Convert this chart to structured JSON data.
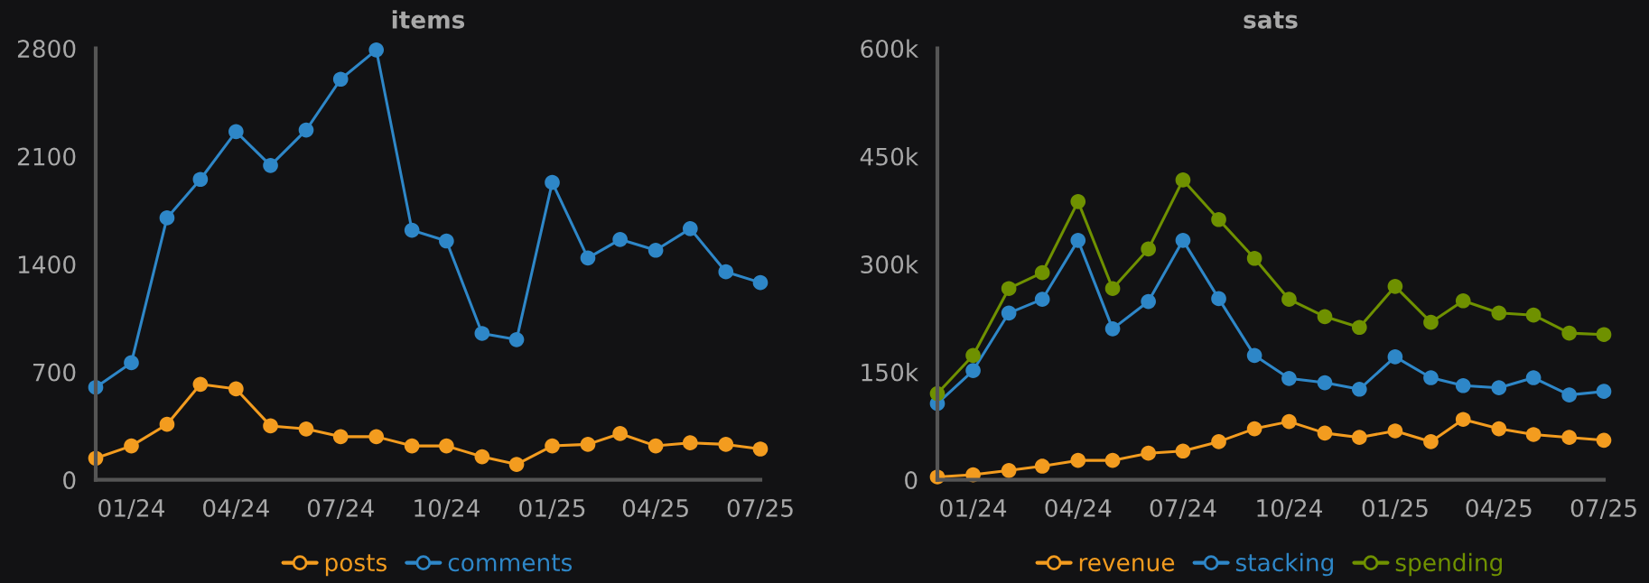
{
  "chart_data": [
    {
      "type": "line",
      "title": "items",
      "x": [
        "2023-12",
        "2024-01",
        "2024-02",
        "2024-03",
        "2024-04",
        "2024-05",
        "2024-06",
        "2024-07",
        "2024-08",
        "2024-09",
        "2024-10",
        "2024-11",
        "2024-12",
        "2025-01",
        "2025-02",
        "2025-03",
        "2025-04",
        "2025-05",
        "2025-06",
        "2025-07"
      ],
      "series": [
        {
          "name": "posts",
          "color": "#f39c1f",
          "values": [
            140,
            220,
            360,
            620,
            590,
            350,
            330,
            280,
            280,
            220,
            220,
            150,
            100,
            220,
            230,
            300,
            220,
            240,
            230,
            200
          ]
        },
        {
          "name": "comments",
          "color": "#2e87c8",
          "values": [
            600,
            760,
            1700,
            1950,
            2260,
            2040,
            2270,
            2600,
            2790,
            1620,
            1550,
            950,
            910,
            1930,
            1440,
            1560,
            1490,
            1630,
            1350,
            1280
          ]
        }
      ],
      "xlim": [
        "2023-12",
        "2025-07"
      ],
      "xticks": [
        {
          "value": "2024-01",
          "label": "01/24"
        },
        {
          "value": "2024-04",
          "label": "04/24"
        },
        {
          "value": "2024-07",
          "label": "07/24"
        },
        {
          "value": "2024-10",
          "label": "10/24"
        },
        {
          "value": "2025-01",
          "label": "01/25"
        },
        {
          "value": "2025-04",
          "label": "04/25"
        },
        {
          "value": "2025-07",
          "label": "07/25"
        }
      ],
      "ylim": [
        0,
        2800
      ],
      "yticks": [
        0,
        700,
        1400,
        2100,
        2800
      ],
      "grid": false,
      "legend": "bottom",
      "marker": "circle",
      "line_style": "solid"
    },
    {
      "type": "line",
      "title": "sats",
      "x": [
        "2023-12",
        "2024-01",
        "2024-02",
        "2024-03",
        "2024-04",
        "2024-05",
        "2024-06",
        "2024-07",
        "2024-08",
        "2024-09",
        "2024-10",
        "2024-11",
        "2024-12",
        "2025-01",
        "2025-02",
        "2025-03",
        "2025-04",
        "2025-05",
        "2025-06",
        "2025-07"
      ],
      "series": [
        {
          "name": "revenue",
          "color": "#f39c1f",
          "values": [
            4000,
            7000,
            13000,
            19000,
            27000,
            27000,
            37000,
            40000,
            53000,
            71000,
            81000,
            65000,
            59000,
            68000,
            53000,
            84000,
            71000,
            63000,
            59000,
            55000
          ]
        },
        {
          "name": "stacking",
          "color": "#2e87c8",
          "values": [
            106000,
            152000,
            232000,
            251000,
            333000,
            210000,
            248000,
            333000,
            252000,
            173000,
            141000,
            135000,
            126000,
            171000,
            142000,
            131000,
            128000,
            142000,
            118000,
            123000
          ]
        },
        {
          "name": "spending",
          "color": "#6f9100",
          "values": [
            120000,
            173000,
            266000,
            288000,
            387000,
            266000,
            321000,
            417000,
            362000,
            308000,
            251000,
            227000,
            212000,
            269000,
            219000,
            249000,
            232000,
            229000,
            204000,
            202000
          ]
        }
      ],
      "xlim": [
        "2023-12",
        "2025-07"
      ],
      "xticks": [
        {
          "value": "2024-01",
          "label": "01/24"
        },
        {
          "value": "2024-04",
          "label": "04/24"
        },
        {
          "value": "2024-07",
          "label": "07/24"
        },
        {
          "value": "2024-10",
          "label": "10/24"
        },
        {
          "value": "2025-01",
          "label": "01/25"
        },
        {
          "value": "2025-04",
          "label": "04/25"
        },
        {
          "value": "2025-07",
          "label": "07/25"
        }
      ],
      "ylim": [
        0,
        600000
      ],
      "yticks": [
        0,
        {
          "value": 150000,
          "label": "150k"
        },
        {
          "value": 300000,
          "label": "300k"
        },
        {
          "value": 450000,
          "label": "450k"
        },
        {
          "value": 600000,
          "label": "600k"
        }
      ],
      "grid": false,
      "legend": "bottom",
      "marker": "circle",
      "line_style": "solid"
    }
  ]
}
